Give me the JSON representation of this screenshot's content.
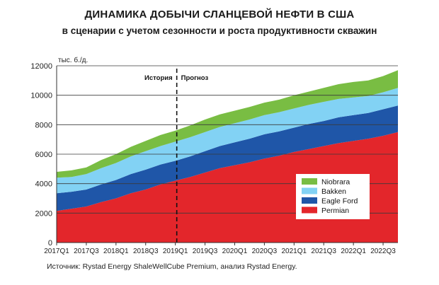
{
  "title": "ДИНАМИКА ДОБЫЧИ СЛАНЦЕВОЙ НЕФТИ В США",
  "subtitle": "в сценарии с учетом сезонности и роста продуктивности скважин",
  "source": "Источник: Rystad Energy ShaleWellCube Premium, анализ Rystad Energy.",
  "chart_data": {
    "type": "area",
    "stacked": true,
    "ylabel": "тыс. б./д.",
    "ylim": [
      0,
      12000
    ],
    "yticks": [
      0,
      2000,
      4000,
      6000,
      8000,
      10000,
      12000
    ],
    "grid": "horizontal",
    "legend_position": "bottom-right",
    "x_tick_labels": [
      "2017Q1",
      "2017Q3",
      "2018Q1",
      "2018Q3",
      "2019Q1",
      "2019Q3",
      "2020Q1",
      "2020Q3",
      "2021Q1",
      "2021Q3",
      "2022Q1",
      "2022Q3"
    ],
    "x_points": [
      "2017Q1",
      "2017Q2",
      "2017Q3",
      "2017Q4",
      "2018Q1",
      "2018Q2",
      "2018Q3",
      "2018Q4",
      "2019Q1",
      "2019Q2",
      "2019Q3",
      "2019Q4",
      "2020Q1",
      "2020Q2",
      "2020Q3",
      "2020Q4",
      "2021Q1",
      "2021Q2",
      "2021Q3",
      "2021Q4",
      "2022Q1",
      "2022Q2",
      "2022Q3",
      "2022Q4"
    ],
    "divider": {
      "after": "2019Q1",
      "left_label": "История",
      "right_label": "Прогноз"
    },
    "series": [
      {
        "name": "Permian",
        "color": "#e3262b",
        "values": [
          2150,
          2300,
          2450,
          2750,
          3000,
          3350,
          3600,
          3950,
          4200,
          4450,
          4750,
          5050,
          5250,
          5450,
          5700,
          5900,
          6150,
          6350,
          6550,
          6750,
          6900,
          7050,
          7250,
          7500
        ]
      },
      {
        "name": "Eagle Ford",
        "color": "#1f56a8",
        "values": [
          1200,
          1150,
          1150,
          1200,
          1250,
          1300,
          1350,
          1350,
          1350,
          1400,
          1450,
          1500,
          1550,
          1600,
          1650,
          1650,
          1650,
          1700,
          1700,
          1750,
          1750,
          1750,
          1800,
          1800
        ]
      },
      {
        "name": "Bakken",
        "color": "#82d2f4",
        "values": [
          1050,
          1000,
          1050,
          1100,
          1150,
          1200,
          1250,
          1250,
          1300,
          1300,
          1300,
          1300,
          1300,
          1300,
          1300,
          1300,
          1300,
          1300,
          1300,
          1250,
          1200,
          1150,
          1150,
          1200
        ]
      },
      {
        "name": "Niobrara",
        "color": "#79bd43",
        "values": [
          400,
          450,
          450,
          550,
          600,
          650,
          700,
          750,
          750,
          800,
          850,
          850,
          850,
          850,
          850,
          850,
          900,
          900,
          950,
          1000,
          1050,
          1050,
          1100,
          1200
        ]
      }
    ]
  }
}
